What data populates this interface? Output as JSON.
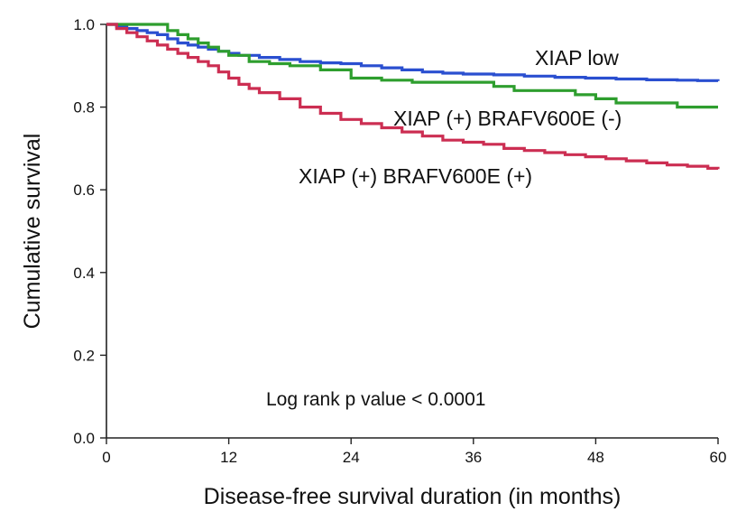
{
  "chart_data": {
    "type": "line",
    "step": true,
    "xlabel": "Disease-free survival duration (in months)",
    "ylabel": "Cumulative survival",
    "xlim": [
      0,
      60
    ],
    "ylim": [
      0,
      1
    ],
    "xticks": [
      "0",
      "12",
      "24",
      "36",
      "48",
      "60"
    ],
    "yticks": [
      "0.0",
      "0.2",
      "0.4",
      "0.6",
      "0.8",
      "1.0"
    ],
    "grid": false,
    "annotation": "Log rank p value < 0.0001",
    "series": [
      {
        "name": "XIAP low",
        "color": "#2a4fd0",
        "x": [
          0,
          1,
          2,
          3,
          4,
          5,
          6,
          7,
          8,
          9,
          10,
          11,
          12,
          13,
          15,
          17,
          19,
          21,
          23,
          25,
          27,
          29,
          31,
          33,
          35,
          38,
          41,
          44,
          47,
          50,
          53,
          56,
          58,
          60
        ],
        "y": [
          1.0,
          0.995,
          0.99,
          0.985,
          0.98,
          0.975,
          0.965,
          0.955,
          0.95,
          0.945,
          0.94,
          0.935,
          0.93,
          0.925,
          0.92,
          0.915,
          0.91,
          0.907,
          0.905,
          0.9,
          0.895,
          0.89,
          0.885,
          0.882,
          0.88,
          0.878,
          0.875,
          0.872,
          0.87,
          0.868,
          0.866,
          0.865,
          0.864,
          0.863
        ]
      },
      {
        "name": "XIAP (+) BRAFV600E (-)",
        "color": "#2e9e2e",
        "x": [
          0,
          5,
          6,
          7,
          8,
          9,
          10,
          11,
          12,
          14,
          16,
          18,
          21,
          24,
          27,
          30,
          33,
          36,
          38,
          40,
          42,
          44,
          46,
          48,
          50,
          53,
          56,
          58,
          60
        ],
        "y": [
          1.0,
          1.0,
          0.985,
          0.975,
          0.965,
          0.955,
          0.945,
          0.935,
          0.925,
          0.91,
          0.905,
          0.9,
          0.89,
          0.87,
          0.865,
          0.86,
          0.86,
          0.86,
          0.85,
          0.84,
          0.84,
          0.84,
          0.83,
          0.82,
          0.81,
          0.81,
          0.8,
          0.8,
          0.8
        ]
      },
      {
        "name": "XIAP (+) BRAFV600E (+)",
        "color": "#cc2e52",
        "x": [
          0,
          1,
          2,
          3,
          4,
          5,
          6,
          7,
          8,
          9,
          10,
          11,
          12,
          13,
          14,
          15,
          17,
          19,
          21,
          23,
          25,
          27,
          29,
          31,
          33,
          35,
          37,
          39,
          41,
          43,
          45,
          47,
          49,
          51,
          53,
          55,
          57,
          59,
          60
        ],
        "y": [
          1.0,
          0.99,
          0.98,
          0.97,
          0.96,
          0.95,
          0.94,
          0.93,
          0.92,
          0.91,
          0.9,
          0.885,
          0.87,
          0.855,
          0.845,
          0.835,
          0.82,
          0.8,
          0.785,
          0.77,
          0.76,
          0.75,
          0.74,
          0.73,
          0.72,
          0.715,
          0.71,
          0.7,
          0.695,
          0.69,
          0.685,
          0.68,
          0.675,
          0.67,
          0.665,
          0.66,
          0.657,
          0.652,
          0.65
        ]
      }
    ]
  }
}
